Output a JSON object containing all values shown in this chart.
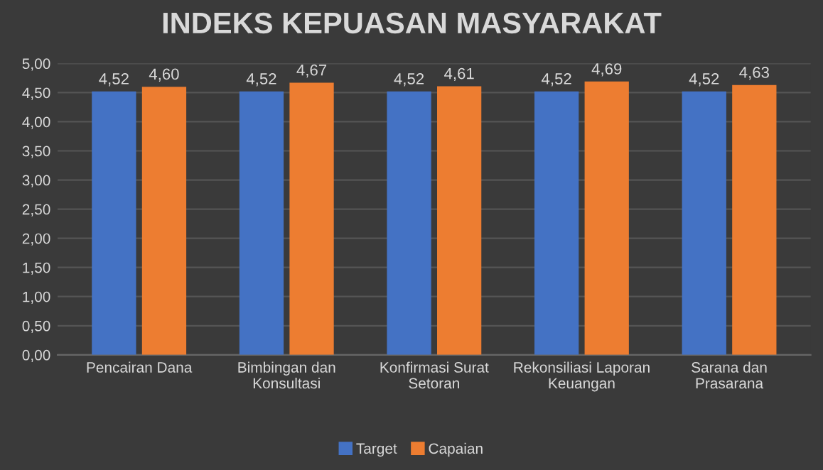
{
  "chart_data": {
    "type": "bar",
    "title": "INDEKS KEPUASAN MASYARAKAT",
    "categories": [
      "Pencairan Dana",
      "Bimbingan dan\nKonsultasi",
      "Konfirmasi Surat\nSetoran",
      "Rekonsiliasi Laporan\nKeuangan",
      "Sarana dan\nPrasarana"
    ],
    "series": [
      {
        "name": "Target",
        "color": "#4472c4",
        "values": [
          4.52,
          4.52,
          4.52,
          4.52,
          4.52
        ],
        "value_labels": [
          "4,52",
          "4,52",
          "4,52",
          "4,52",
          "4,52"
        ]
      },
      {
        "name": "Capaian",
        "color": "#ed7d31",
        "values": [
          4.6,
          4.67,
          4.61,
          4.69,
          4.63
        ],
        "value_labels": [
          "4,60",
          "4,67",
          "4,61",
          "4,69",
          "4,63"
        ]
      }
    ],
    "ylim": [
      0,
      5
    ],
    "yticks": [
      {
        "value": 0,
        "label": "0,00"
      },
      {
        "value": 0.5,
        "label": "0,50"
      },
      {
        "value": 1,
        "label": "1,00"
      },
      {
        "value": 1.5,
        "label": "1,50"
      },
      {
        "value": 2,
        "label": "2,00"
      },
      {
        "value": 2.5,
        "label": "2,50"
      },
      {
        "value": 3,
        "label": "3,00"
      },
      {
        "value": 3.5,
        "label": "3,50"
      },
      {
        "value": 4,
        "label": "4,00"
      },
      {
        "value": 4.5,
        "label": "4,50"
      },
      {
        "value": 5,
        "label": "5,00"
      }
    ],
    "grid": "y",
    "legend": "bottom"
  }
}
